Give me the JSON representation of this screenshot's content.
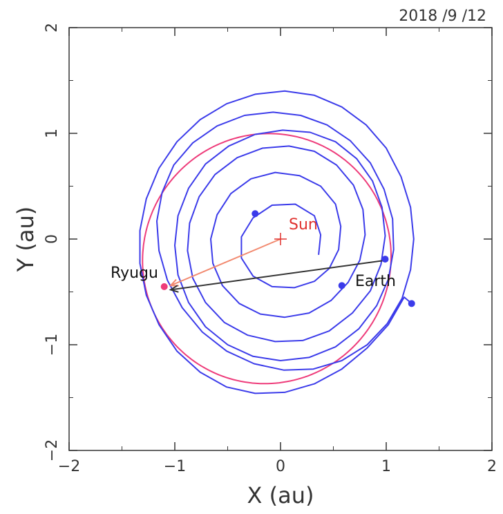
{
  "chart_data": {
    "type": "orbit-plot",
    "date": "2018 /9 /12",
    "xlabel": "X (au)",
    "ylabel": "Y (au)",
    "xlim": [
      -2,
      2
    ],
    "ylim": [
      -2,
      2
    ],
    "xticks": [
      "−2",
      "−1",
      "0",
      "1",
      "2"
    ],
    "yticks": [
      "−2",
      "−1",
      "0",
      "1",
      "2"
    ],
    "grid": false,
    "colors": {
      "trajectory": "#3b3bea",
      "ryugu_orbit": "#ee3b7a",
      "sun": "#e0322f",
      "sun_vector": "#f28a70",
      "earth_vector": "#333333",
      "annotation_text": "#111111"
    },
    "sun": {
      "label": "Sun",
      "x": 0,
      "y": 0
    },
    "ryugu": {
      "label": "Ryugu",
      "x": -1.1,
      "y": -0.45
    },
    "earth": {
      "label": "Earth",
      "x": 1.0,
      "y": -0.2
    },
    "ryugu_orbit": {
      "a": 1.19,
      "e": 0.19,
      "perihelion_angle_deg": 55
    },
    "spiral_trajectory": {
      "points": [
        [
          0.36,
          -0.15
        ],
        [
          0.38,
          0.04
        ],
        [
          0.32,
          0.22
        ],
        [
          0.14,
          0.33
        ],
        [
          -0.08,
          0.32
        ],
        [
          -0.26,
          0.2
        ],
        [
          -0.37,
          0.02
        ],
        [
          -0.37,
          -0.18
        ],
        [
          -0.26,
          -0.35
        ],
        [
          -0.08,
          -0.45
        ],
        [
          0.13,
          -0.46
        ],
        [
          0.32,
          -0.4
        ],
        [
          0.46,
          -0.28
        ],
        [
          0.55,
          -0.1
        ],
        [
          0.57,
          0.12
        ],
        [
          0.52,
          0.33
        ],
        [
          0.38,
          0.5
        ],
        [
          0.18,
          0.6
        ],
        [
          -0.05,
          0.63
        ],
        [
          -0.28,
          0.57
        ],
        [
          -0.47,
          0.43
        ],
        [
          -0.6,
          0.23
        ],
        [
          -0.66,
          0
        ],
        [
          -0.64,
          -0.23
        ],
        [
          -0.55,
          -0.44
        ],
        [
          -0.39,
          -0.61
        ],
        [
          -0.19,
          -0.71
        ],
        [
          0.04,
          -0.74
        ],
        [
          0.27,
          -0.7
        ],
        [
          0.48,
          -0.58
        ],
        [
          0.64,
          -0.41
        ],
        [
          0.75,
          -0.2
        ],
        [
          0.8,
          0.04
        ],
        [
          0.78,
          0.28
        ],
        [
          0.69,
          0.51
        ],
        [
          0.53,
          0.7
        ],
        [
          0.32,
          0.83
        ],
        [
          0.08,
          0.88
        ],
        [
          -0.17,
          0.86
        ],
        [
          -0.41,
          0.77
        ],
        [
          -0.62,
          0.61
        ],
        [
          -0.77,
          0.4
        ],
        [
          -0.86,
          0.15
        ],
        [
          -0.88,
          -0.11
        ],
        [
          -0.83,
          -0.37
        ],
        [
          -0.71,
          -0.6
        ],
        [
          -0.53,
          -0.79
        ],
        [
          -0.31,
          -0.91
        ],
        [
          -0.05,
          -0.97
        ],
        [
          0.21,
          -0.96
        ],
        [
          0.46,
          -0.87
        ],
        [
          0.68,
          -0.7
        ],
        [
          0.85,
          -0.49
        ],
        [
          0.95,
          -0.24
        ],
        [
          0.99,
          0.03
        ],
        [
          0.96,
          0.3
        ],
        [
          0.87,
          0.55
        ],
        [
          0.72,
          0.76
        ],
        [
          0.52,
          0.92
        ],
        [
          0.28,
          1.01
        ],
        [
          0.02,
          1.03
        ],
        [
          -0.24,
          0.99
        ],
        [
          -0.49,
          0.88
        ],
        [
          -0.71,
          0.71
        ],
        [
          -0.87,
          0.48
        ],
        [
          -0.97,
          0.22
        ],
        [
          -1.0,
          -0.06
        ],
        [
          -0.97,
          -0.34
        ],
        [
          -0.87,
          -0.6
        ],
        [
          -0.71,
          -0.83
        ],
        [
          -0.5,
          -1.0
        ],
        [
          -0.26,
          -1.11
        ],
        [
          0.0,
          -1.15
        ],
        [
          0.27,
          -1.12
        ],
        [
          0.52,
          -1.02
        ],
        [
          0.74,
          -0.85
        ],
        [
          0.91,
          -0.63
        ],
        [
          1.02,
          -0.38
        ],
        [
          1.07,
          -0.1
        ],
        [
          1.06,
          0.19
        ],
        [
          0.98,
          0.47
        ],
        [
          0.85,
          0.72
        ],
        [
          0.66,
          0.93
        ],
        [
          0.44,
          1.08
        ],
        [
          0.19,
          1.17
        ],
        [
          -0.07,
          1.2
        ],
        [
          -0.34,
          1.17
        ],
        [
          -0.6,
          1.07
        ],
        [
          -0.83,
          0.91
        ],
        [
          -1.01,
          0.7
        ],
        [
          -1.12,
          0.44
        ],
        [
          -1.17,
          0.17
        ],
        [
          -1.15,
          -0.11
        ],
        [
          -1.07,
          -0.39
        ],
        [
          -0.93,
          -0.65
        ],
        [
          -0.74,
          -0.88
        ],
        [
          -0.51,
          -1.06
        ],
        [
          -0.25,
          -1.18
        ],
        [
          0.03,
          -1.24
        ],
        [
          0.31,
          -1.23
        ],
        [
          0.58,
          -1.15
        ],
        [
          0.82,
          -1.0
        ],
        [
          1.01,
          -0.8
        ],
        [
          1.15,
          -0.56
        ],
        [
          1.23,
          -0.29
        ],
        [
          1.26,
          0.0
        ],
        [
          1.23,
          0.3
        ],
        [
          1.14,
          0.59
        ],
        [
          1.0,
          0.86
        ],
        [
          0.81,
          1.08
        ],
        [
          0.58,
          1.25
        ],
        [
          0.32,
          1.36
        ],
        [
          0.04,
          1.4
        ],
        [
          -0.24,
          1.37
        ],
        [
          -0.51,
          1.28
        ],
        [
          -0.76,
          1.13
        ],
        [
          -0.98,
          0.92
        ],
        [
          -1.15,
          0.67
        ],
        [
          -1.27,
          0.38
        ],
        [
          -1.33,
          0.08
        ],
        [
          -1.33,
          -0.23
        ],
        [
          -1.27,
          -0.53
        ],
        [
          -1.15,
          -0.81
        ],
        [
          -0.98,
          -1.06
        ],
        [
          -0.76,
          -1.26
        ],
        [
          -0.51,
          -1.4
        ],
        [
          -0.24,
          -1.46
        ],
        [
          0.04,
          -1.45
        ],
        [
          0.32,
          -1.37
        ],
        [
          0.58,
          -1.23
        ],
        [
          0.82,
          -1.03
        ],
        [
          1.02,
          -0.81
        ],
        [
          1.17,
          -0.55
        ],
        [
          1.24,
          -0.61
        ]
      ],
      "markers": [
        [
          -0.24,
          0.24
        ],
        [
          0.58,
          -0.44
        ],
        [
          0.99,
          -0.19
        ],
        [
          1.24,
          -0.61
        ]
      ]
    },
    "vectors": [
      {
        "name": "sun-to-ryugu",
        "from": [
          0,
          0
        ],
        "to": [
          -1.04,
          -0.44
        ]
      },
      {
        "name": "earth-to-ryugu",
        "from": [
          1.0,
          -0.2
        ],
        "to": [
          -1.04,
          -0.48
        ]
      }
    ]
  }
}
